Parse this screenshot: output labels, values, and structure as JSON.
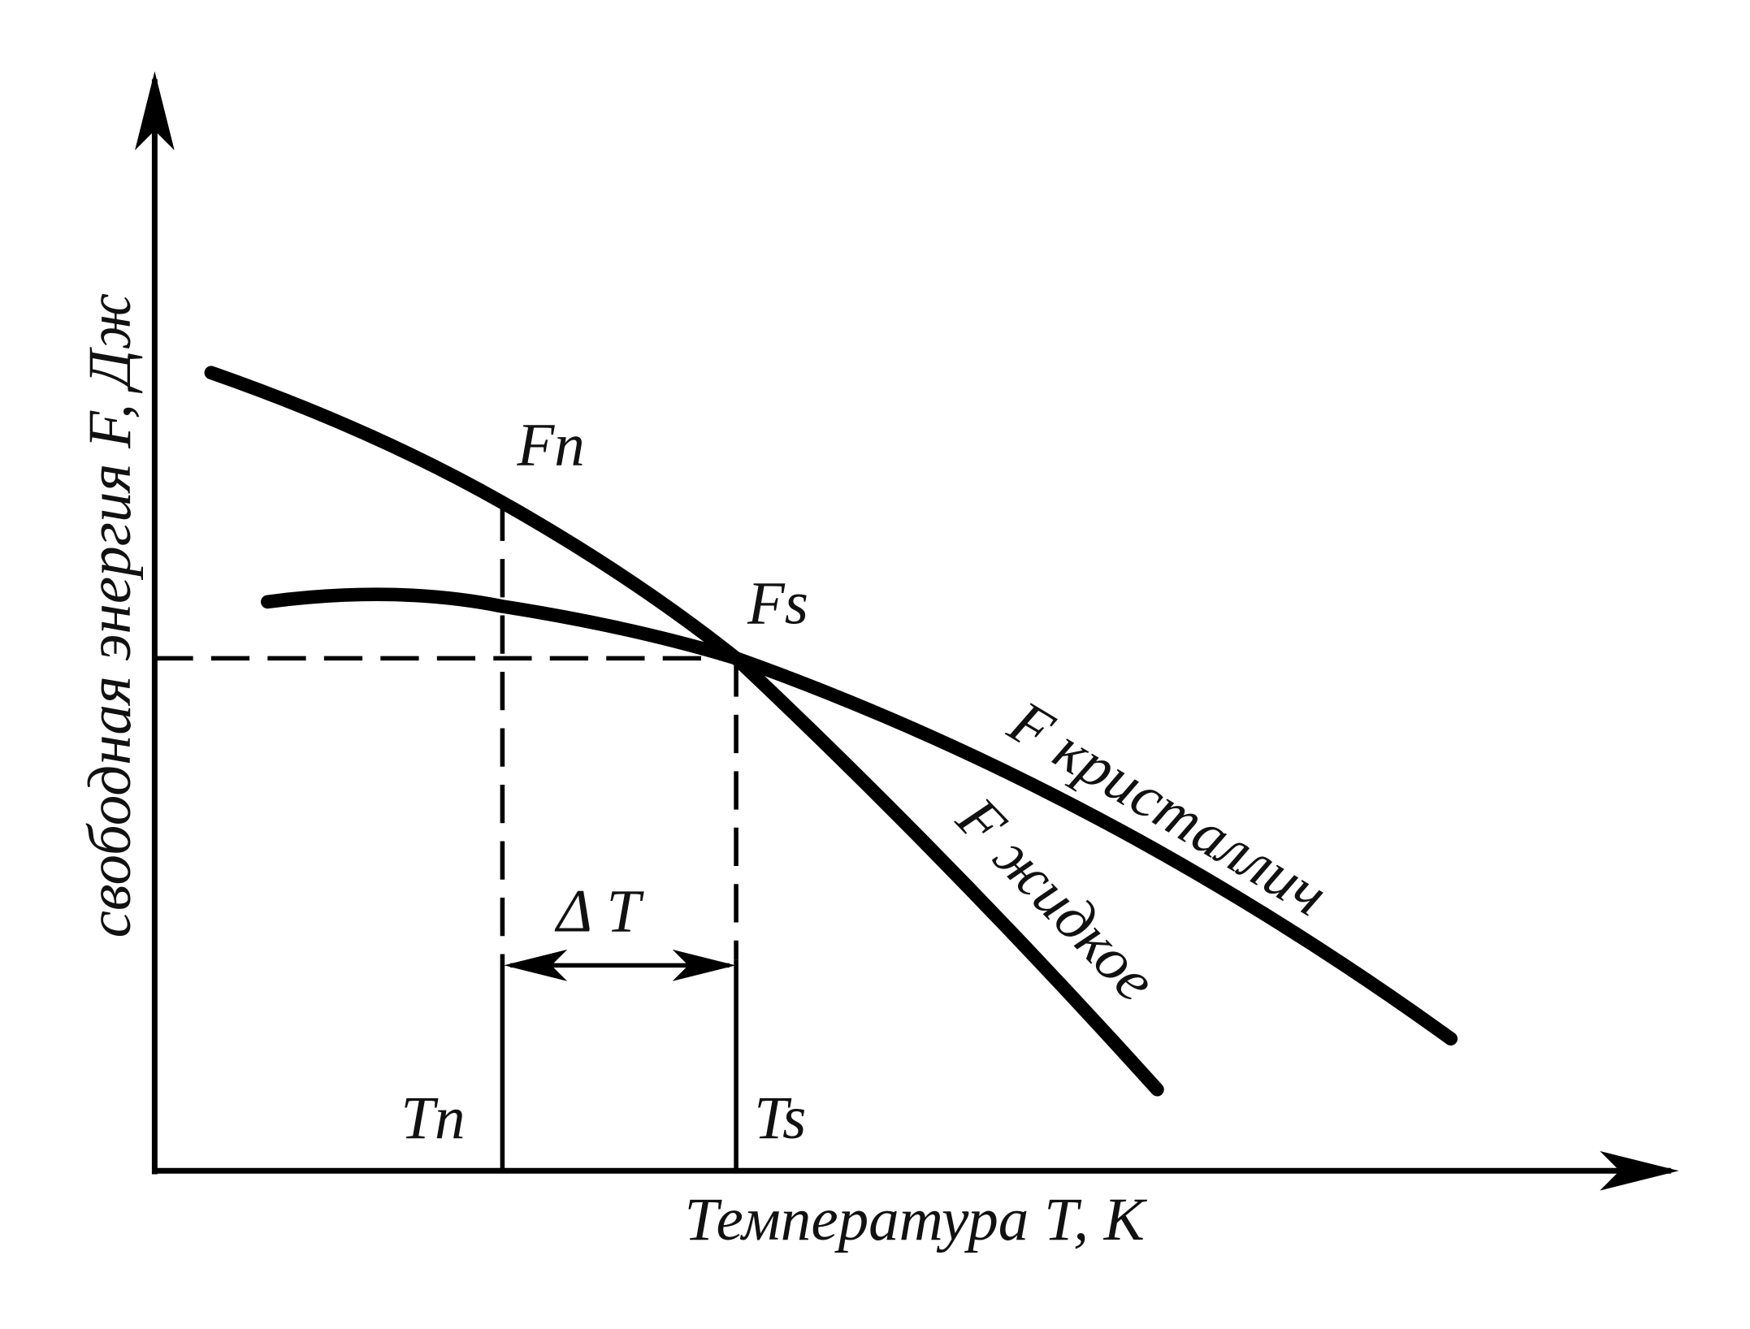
{
  "axes": {
    "y_label": "свободная энергия F, Дж",
    "x_label": "Температура T, K"
  },
  "points": {
    "fn": "Fn",
    "fs": "Fs",
    "tn": "Tn",
    "ts": "Ts",
    "delta_t": "Δ T"
  },
  "curves": {
    "crystal": "F кристаллич",
    "liquid": "F жидкое"
  }
}
